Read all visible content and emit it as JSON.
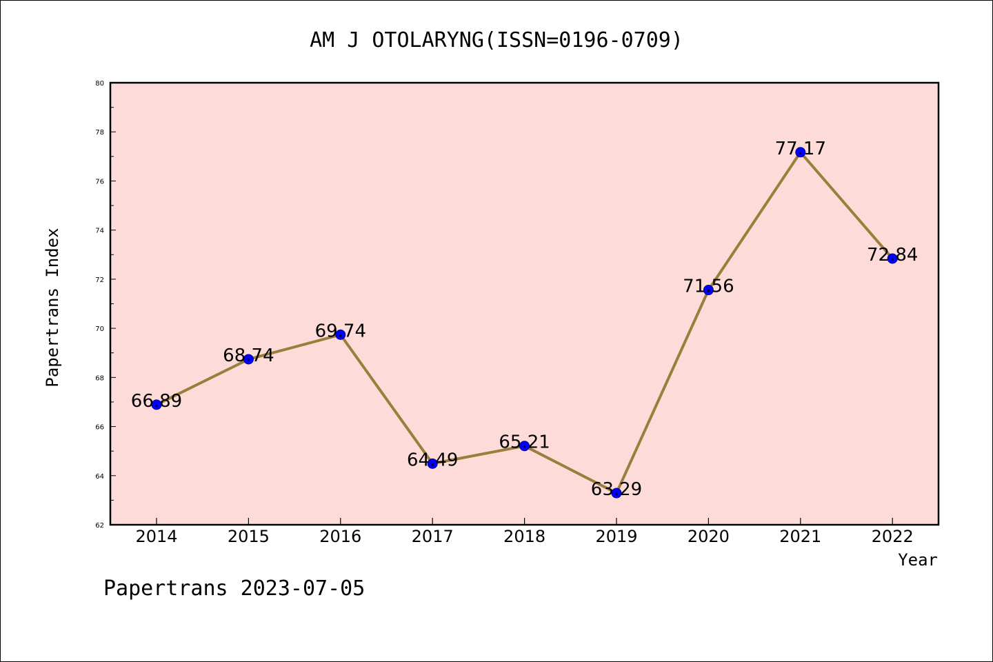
{
  "chart_data": {
    "type": "line",
    "title": "AM J OTOLARYNG(ISSN=0196-0709)",
    "xlabel": "Year",
    "ylabel": "Papertrans Index",
    "categories": [
      "2014",
      "2015",
      "2016",
      "2017",
      "2018",
      "2019",
      "2020",
      "2021",
      "2022"
    ],
    "series": [
      {
        "values": [
          66.89,
          68.74,
          69.74,
          64.49,
          65.21,
          63.29,
          71.56,
          77.17,
          72.84
        ],
        "labels": [
          "66.89",
          "68.74",
          "69.74",
          "64.49",
          "65.21",
          "63.29",
          "71.56",
          "77.17",
          "72.84"
        ]
      }
    ],
    "ylim": [
      62,
      80
    ],
    "yticks": [
      "62",
      "64",
      "66",
      "68",
      "70",
      "72",
      "74",
      "76",
      "78",
      "80"
    ],
    "grid": false,
    "legend": "none",
    "footer": "Papertrans 2023-07-05"
  },
  "colors": {
    "plot_background": "#fddbd8",
    "line": "#9a7e3c",
    "marker": "#0000ff"
  }
}
